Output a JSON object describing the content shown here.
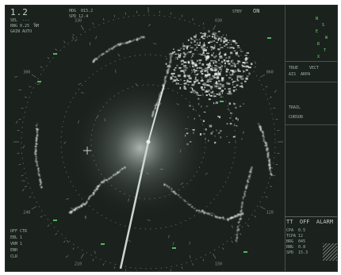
{
  "colors": {
    "background": "#1b211d",
    "echo": "#dfe5df",
    "text": "#9fb3a6",
    "highlight_green": "#5fe06a",
    "range_ring": "#7f8f84"
  },
  "header": {
    "range": "1.2",
    "line1": "SEL  ---",
    "line2": "RNG 0.25  NM",
    "line3": "GAIN AUTO"
  },
  "top_center": {
    "heading": "HDG  015.2",
    "speed": "SPD 12.4"
  },
  "top_right": {
    "status_label": "STBY",
    "status_value": "ON",
    "green_readouts": [
      "N",
      "S",
      "E",
      "W",
      "R",
      "T",
      "X"
    ]
  },
  "side_panel": {
    "line_a": "TRUE",
    "line_b": "VECT",
    "line_c": "AIS  ARPA",
    "line_d": "TRAIL",
    "cursor_label": "CURSOR"
  },
  "bottom_right": {
    "title": "TT  OFF  ALARM",
    "rows": [
      "CPA  0.5",
      "TCPA 12",
      "BRG  045",
      "RNG  0.8",
      "SPD  15.3"
    ]
  },
  "bottom_left": {
    "rows": [
      "OFF CTR",
      "EBL 1",
      "VRM 1",
      "ENH",
      "CLR"
    ]
  },
  "bearing_ticks": [
    "000",
    "030",
    "060",
    "090",
    "120",
    "150",
    "180",
    "210",
    "240",
    "270",
    "300",
    "330"
  ]
}
